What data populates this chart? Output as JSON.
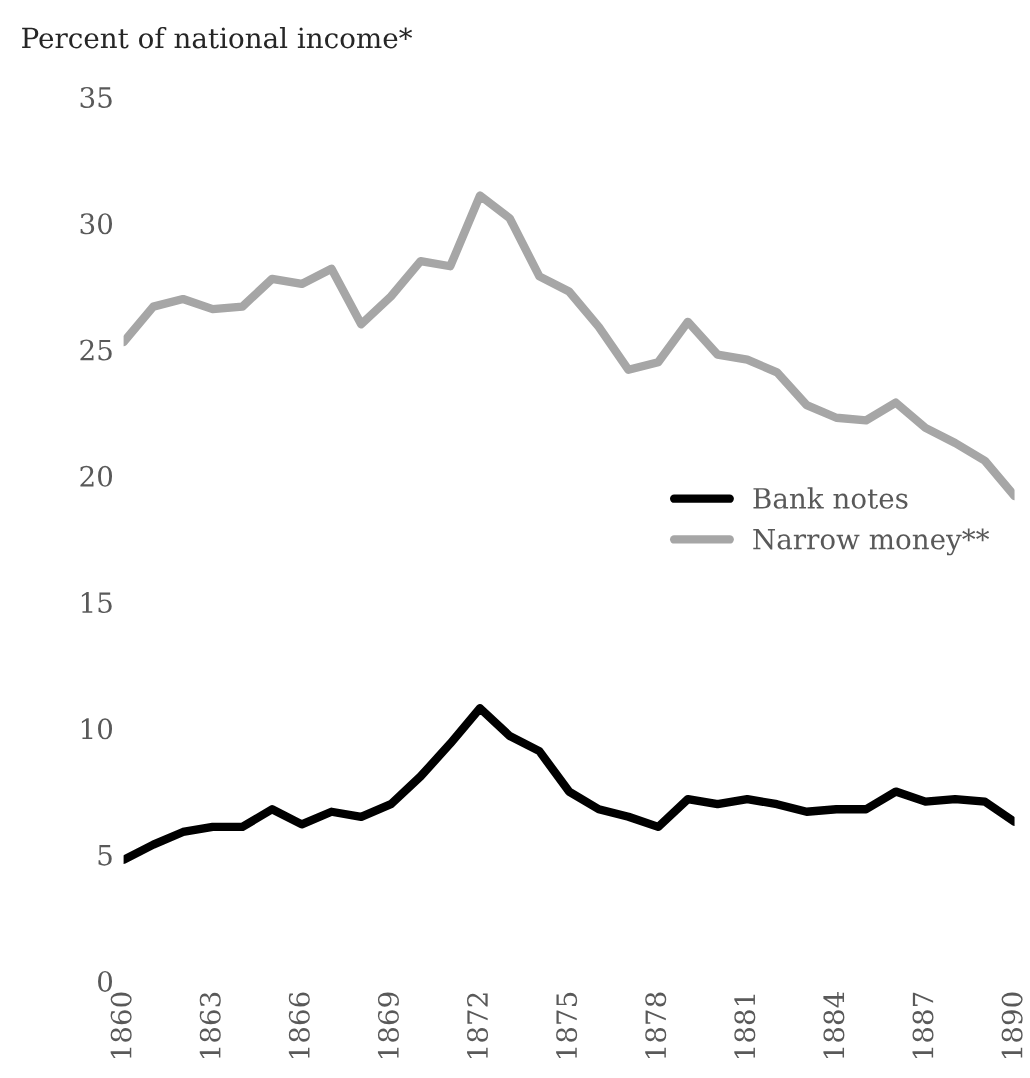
{
  "chart_data": {
    "type": "line",
    "ylabel": "Percent of national income*",
    "x": [
      1860,
      1861,
      1862,
      1863,
      1864,
      1865,
      1866,
      1867,
      1868,
      1869,
      1870,
      1871,
      1872,
      1873,
      1874,
      1875,
      1876,
      1877,
      1878,
      1879,
      1880,
      1881,
      1882,
      1883,
      1884,
      1885,
      1886,
      1887,
      1888,
      1889,
      1890
    ],
    "series": [
      {
        "name": "Bank notes",
        "color": "#000000",
        "values": [
          4.8,
          5.4,
          5.9,
          6.1,
          6.1,
          6.8,
          6.2,
          6.7,
          6.5,
          7.0,
          8.1,
          9.4,
          10.8,
          9.7,
          9.1,
          7.5,
          6.8,
          6.5,
          6.1,
          7.2,
          7.0,
          7.2,
          7.0,
          6.7,
          6.8,
          6.8,
          7.5,
          7.1,
          7.2,
          7.1,
          6.3
        ]
      },
      {
        "name": "Narrow money**",
        "color": "#a6a6a6",
        "values": [
          25.3,
          26.7,
          27.0,
          26.6,
          26.7,
          27.8,
          27.6,
          28.2,
          26.0,
          27.1,
          28.5,
          28.3,
          31.1,
          30.2,
          27.9,
          27.3,
          25.9,
          24.2,
          24.5,
          26.1,
          24.8,
          24.6,
          24.1,
          22.8,
          22.3,
          22.2,
          22.9,
          21.9,
          21.3,
          20.6,
          19.2
        ]
      }
    ],
    "xlim": [
      1860,
      1890
    ],
    "xticks": [
      1860,
      1863,
      1866,
      1869,
      1872,
      1875,
      1878,
      1881,
      1884,
      1887,
      1890
    ],
    "ylim": [
      0,
      35
    ],
    "yticks": [
      0,
      5,
      10,
      15,
      20,
      25,
      30,
      35
    ],
    "grid": false,
    "legend": "right",
    "marker": "none",
    "line_style": "solid"
  }
}
